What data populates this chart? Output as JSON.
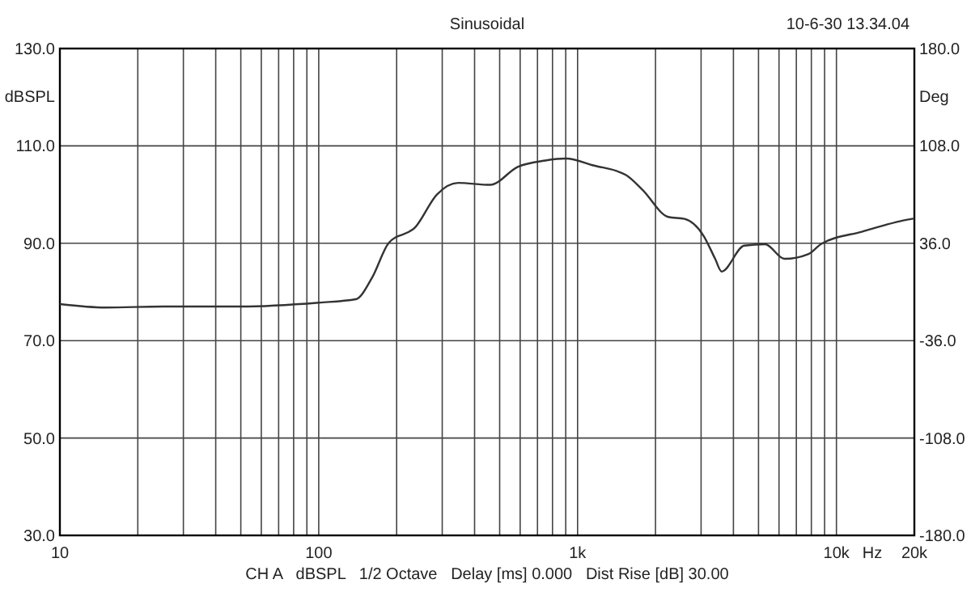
{
  "chart_data": {
    "type": "line",
    "title": "Sinusoidal",
    "ylabel": "dBSPL",
    "y2label": "Deg",
    "xlabel": "Hz",
    "annotations": [
      "10-6-30 13.34.04",
      "CH A   dBSPL   1/2 Octave   Delay [ms] 0.000   Dist Rise [dB] 30.00"
    ],
    "log": "x",
    "grid": true,
    "line_style": "solid",
    "xlim": [
      10,
      20000
    ],
    "ylim": [
      30,
      130
    ],
    "y2lim": [
      -180,
      180
    ],
    "xticks": [
      {
        "value": 10,
        "label": "10"
      },
      {
        "value": 20,
        "label": null
      },
      {
        "value": 30,
        "label": null
      },
      {
        "value": 40,
        "label": null
      },
      {
        "value": 50,
        "label": null
      },
      {
        "value": 60,
        "label": null
      },
      {
        "value": 70,
        "label": null
      },
      {
        "value": 80,
        "label": null
      },
      {
        "value": 90,
        "label": null
      },
      {
        "value": 100,
        "label": "100"
      },
      {
        "value": 200,
        "label": null
      },
      {
        "value": 300,
        "label": null
      },
      {
        "value": 400,
        "label": null
      },
      {
        "value": 500,
        "label": null
      },
      {
        "value": 600,
        "label": null
      },
      {
        "value": 700,
        "label": null
      },
      {
        "value": 800,
        "label": null
      },
      {
        "value": 900,
        "label": null
      },
      {
        "value": 1000,
        "label": "1k"
      },
      {
        "value": 2000,
        "label": null
      },
      {
        "value": 3000,
        "label": null
      },
      {
        "value": 4000,
        "label": null
      },
      {
        "value": 5000,
        "label": null
      },
      {
        "value": 6000,
        "label": null
      },
      {
        "value": 7000,
        "label": null
      },
      {
        "value": 8000,
        "label": null
      },
      {
        "value": 9000,
        "label": null
      },
      {
        "value": 10000,
        "label": "10k"
      },
      {
        "value": 20000,
        "label": "20k"
      }
    ],
    "yticks": [
      {
        "value": 30,
        "label": "30.0"
      },
      {
        "value": 50,
        "label": "50.0"
      },
      {
        "value": 70,
        "label": "70.0"
      },
      {
        "value": 90,
        "label": "90.0"
      },
      {
        "value": 110,
        "label": "110.0"
      },
      {
        "value": 130,
        "label": "130.0"
      }
    ],
    "y2ticks": [
      {
        "value": -180,
        "label": "-180.0"
      },
      {
        "value": -108,
        "label": "-108.0"
      },
      {
        "value": -36,
        "label": "-36.0"
      },
      {
        "value": 36,
        "label": "36.0"
      },
      {
        "value": 108,
        "label": "108.0"
      },
      {
        "value": 180,
        "label": "180.0"
      }
    ],
    "series": [
      {
        "color": "#333333",
        "x": [
          10,
          15,
          25,
          50,
          100,
          139,
          161,
          186,
          237,
          286,
          345,
          460,
          587,
          750,
          900,
          1150,
          1540,
          1780,
          2240,
          2590,
          3070,
          3400,
          3600,
          4400,
          5300,
          6300,
          7800,
          8700,
          12600,
          18600,
          20000
        ],
        "values": [
          77.5,
          76.8,
          77,
          77,
          77.8,
          78.5,
          83,
          90,
          93.4,
          100,
          102.4,
          102,
          105.7,
          107,
          107.4,
          106,
          104,
          101,
          95.4,
          95,
          91.5,
          86.8,
          84.2,
          89.5,
          89.8,
          86.8,
          87.8,
          89.8,
          92.4,
          94.8,
          95.1
        ]
      }
    ]
  }
}
